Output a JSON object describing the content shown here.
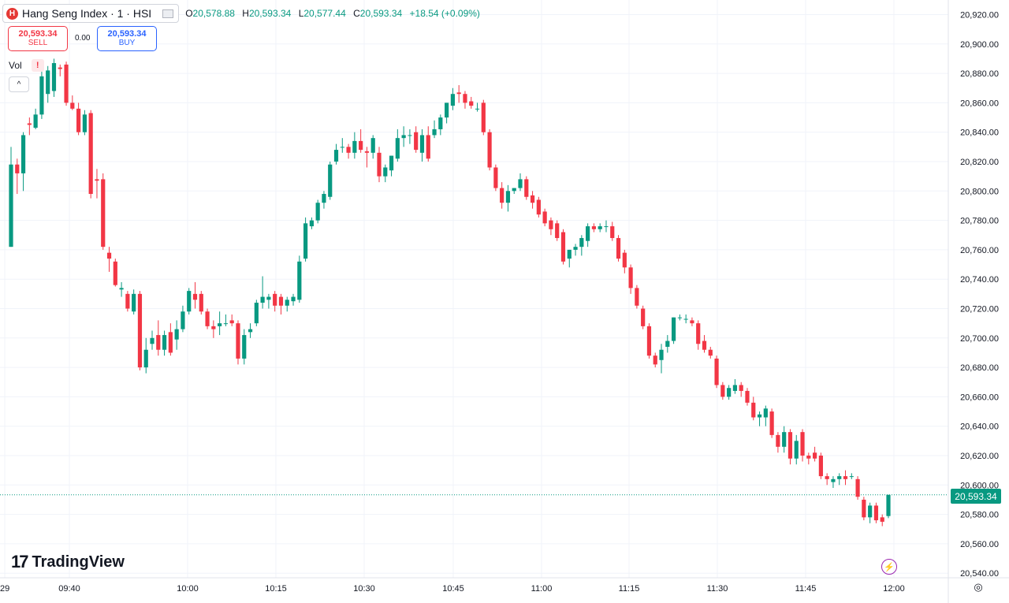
{
  "header": {
    "symbol_logo": "H",
    "symbol_title": "Hang Seng Index · 1 · HSI",
    "ohlc": [
      {
        "k": "O",
        "v": "20,578.88"
      },
      {
        "k": "H",
        "v": "20,593.34"
      },
      {
        "k": "L",
        "v": "20,577.44"
      },
      {
        "k": "C",
        "v": "20,593.34"
      },
      {
        "k": "",
        "v": "+18.54 (+0.09%)"
      }
    ]
  },
  "trade": {
    "sell_price": "20,593.34",
    "sell_label": "SELL",
    "spread": "0.00",
    "buy_price": "20,593.34",
    "buy_label": "BUY"
  },
  "indicator": {
    "vol_label": "Vol",
    "warning": "!"
  },
  "watermark": {
    "text": "TradingView"
  },
  "last_price_label": "20,593.34",
  "colors": {
    "up": "#089981",
    "down": "#f23645",
    "grid": "#f0f3fa",
    "text": "#131722"
  },
  "icons": [
    "hsi-logo-icon",
    "warning-icon",
    "chevron-up-icon",
    "tradingview-logo-icon",
    "lightning-icon",
    "settings-icon"
  ],
  "chart_data": {
    "type": "candlestick",
    "x_tick_labels": [
      "29",
      "09:40",
      "10:00",
      "10:15",
      "10:30",
      "10:45",
      "11:00",
      "11:15",
      "11:30",
      "11:45",
      "12:00"
    ],
    "y_tick_labels": [
      "20,920.00",
      "20,900.00",
      "20,880.00",
      "20,860.00",
      "20,840.00",
      "20,820.00",
      "20,800.00",
      "20,780.00",
      "20,760.00",
      "20,740.00",
      "20,720.00",
      "20,700.00",
      "20,680.00",
      "20,660.00",
      "20,640.00",
      "20,620.00",
      "20,600.00",
      "20,580.00",
      "20,560.00",
      "20,540.00"
    ],
    "ylim": [
      20530,
      20930
    ],
    "last_price": 20593.34,
    "candles": [
      {
        "o": 20762,
        "h": 20830,
        "l": 20762,
        "c": 20818
      },
      {
        "o": 20818,
        "h": 20822,
        "l": 20798,
        "c": 20812
      },
      {
        "o": 20812,
        "h": 20840,
        "l": 20800,
        "c": 20838
      },
      {
        "o": 20846,
        "h": 20850,
        "l": 20838,
        "c": 20845
      },
      {
        "o": 20843,
        "h": 20856,
        "l": 20842,
        "c": 20852
      },
      {
        "o": 20852,
        "h": 20884,
        "l": 20849,
        "c": 20878
      },
      {
        "o": 20866,
        "h": 20885,
        "l": 20860,
        "c": 20882
      },
      {
        "o": 20868,
        "h": 20890,
        "l": 20864,
        "c": 20887
      },
      {
        "o": 20884,
        "h": 20886,
        "l": 20878,
        "c": 20883
      },
      {
        "o": 20886,
        "h": 20888,
        "l": 20858,
        "c": 20860
      },
      {
        "o": 20860,
        "h": 20865,
        "l": 20855,
        "c": 20856
      },
      {
        "o": 20856,
        "h": 20860,
        "l": 20838,
        "c": 20840
      },
      {
        "o": 20840,
        "h": 20855,
        "l": 20838,
        "c": 20852
      },
      {
        "o": 20853,
        "h": 20855,
        "l": 20795,
        "c": 20798
      },
      {
        "o": 20808,
        "h": 20815,
        "l": 20795,
        "c": 20807
      },
      {
        "o": 20808,
        "h": 20812,
        "l": 20760,
        "c": 20762
      },
      {
        "o": 20758,
        "h": 20762,
        "l": 20745,
        "c": 20754
      },
      {
        "o": 20752,
        "h": 20754,
        "l": 20735,
        "c": 20736
      },
      {
        "o": 20733,
        "h": 20738,
        "l": 20728,
        "c": 20734
      },
      {
        "o": 20730,
        "h": 20732,
        "l": 20718,
        "c": 20720
      },
      {
        "o": 20718,
        "h": 20733,
        "l": 20716,
        "c": 20730
      },
      {
        "o": 20730,
        "h": 20732,
        "l": 20678,
        "c": 20680
      },
      {
        "o": 20680,
        "h": 20700,
        "l": 20676,
        "c": 20692
      },
      {
        "o": 20696,
        "h": 20705,
        "l": 20692,
        "c": 20700
      },
      {
        "o": 20702,
        "h": 20712,
        "l": 20688,
        "c": 20692
      },
      {
        "o": 20692,
        "h": 20705,
        "l": 20688,
        "c": 20702
      },
      {
        "o": 20704,
        "h": 20710,
        "l": 20688,
        "c": 20690
      },
      {
        "o": 20699,
        "h": 20712,
        "l": 20692,
        "c": 20706
      },
      {
        "o": 20706,
        "h": 20722,
        "l": 20704,
        "c": 20718
      },
      {
        "o": 20718,
        "h": 20734,
        "l": 20716,
        "c": 20732
      },
      {
        "o": 20730,
        "h": 20738,
        "l": 20720,
        "c": 20726
      },
      {
        "o": 20730,
        "h": 20732,
        "l": 20716,
        "c": 20718
      },
      {
        "o": 20718,
        "h": 20720,
        "l": 20706,
        "c": 20708
      },
      {
        "o": 20708,
        "h": 20712,
        "l": 20700,
        "c": 20706
      },
      {
        "o": 20708,
        "h": 20718,
        "l": 20702,
        "c": 20710
      },
      {
        "o": 20710,
        "h": 20716,
        "l": 20708,
        "c": 20710
      },
      {
        "o": 20712,
        "h": 20716,
        "l": 20708,
        "c": 20710
      },
      {
        "o": 20710,
        "h": 20712,
        "l": 20682,
        "c": 20686
      },
      {
        "o": 20686,
        "h": 20706,
        "l": 20682,
        "c": 20702
      },
      {
        "o": 20704,
        "h": 20710,
        "l": 20700,
        "c": 20706
      },
      {
        "o": 20710,
        "h": 20726,
        "l": 20708,
        "c": 20724
      },
      {
        "o": 20724,
        "h": 20742,
        "l": 20720,
        "c": 20728
      },
      {
        "o": 20726,
        "h": 20730,
        "l": 20720,
        "c": 20728
      },
      {
        "o": 20730,
        "h": 20732,
        "l": 20718,
        "c": 20722
      },
      {
        "o": 20728,
        "h": 20730,
        "l": 20716,
        "c": 20722
      },
      {
        "o": 20722,
        "h": 20728,
        "l": 20718,
        "c": 20726
      },
      {
        "o": 20725,
        "h": 20730,
        "l": 20722,
        "c": 20728
      },
      {
        "o": 20726,
        "h": 20756,
        "l": 20724,
        "c": 20752
      },
      {
        "o": 20754,
        "h": 20782,
        "l": 20752,
        "c": 20778
      },
      {
        "o": 20776,
        "h": 20782,
        "l": 20774,
        "c": 20780
      },
      {
        "o": 20780,
        "h": 20794,
        "l": 20778,
        "c": 20792
      },
      {
        "o": 20792,
        "h": 20800,
        "l": 20788,
        "c": 20798
      },
      {
        "o": 20796,
        "h": 20820,
        "l": 20794,
        "c": 20818
      },
      {
        "o": 20820,
        "h": 20832,
        "l": 20818,
        "c": 20828
      },
      {
        "o": 20830,
        "h": 20836,
        "l": 20826,
        "c": 20830
      },
      {
        "o": 20830,
        "h": 20832,
        "l": 20822,
        "c": 20826
      },
      {
        "o": 20826,
        "h": 20840,
        "l": 20822,
        "c": 20834
      },
      {
        "o": 20834,
        "h": 20842,
        "l": 20826,
        "c": 20828
      },
      {
        "o": 20827,
        "h": 20830,
        "l": 20816,
        "c": 20826
      },
      {
        "o": 20826,
        "h": 20838,
        "l": 20822,
        "c": 20836
      },
      {
        "o": 20826,
        "h": 20830,
        "l": 20806,
        "c": 20810
      },
      {
        "o": 20810,
        "h": 20818,
        "l": 20806,
        "c": 20816
      },
      {
        "o": 20814,
        "h": 20824,
        "l": 20810,
        "c": 20824
      },
      {
        "o": 20822,
        "h": 20842,
        "l": 20820,
        "c": 20836
      },
      {
        "o": 20836,
        "h": 20844,
        "l": 20830,
        "c": 20838
      },
      {
        "o": 20838,
        "h": 20842,
        "l": 20832,
        "c": 20838
      },
      {
        "o": 20840,
        "h": 20844,
        "l": 20826,
        "c": 20828
      },
      {
        "o": 20826,
        "h": 20842,
        "l": 20820,
        "c": 20838
      },
      {
        "o": 20838,
        "h": 20844,
        "l": 20820,
        "c": 20822
      },
      {
        "o": 20838,
        "h": 20848,
        "l": 20836,
        "c": 20842
      },
      {
        "o": 20842,
        "h": 20852,
        "l": 20838,
        "c": 20850
      },
      {
        "o": 20850,
        "h": 20860,
        "l": 20846,
        "c": 20860
      },
      {
        "o": 20858,
        "h": 20870,
        "l": 20855,
        "c": 20866
      },
      {
        "o": 20867,
        "h": 20872,
        "l": 20860,
        "c": 20866
      },
      {
        "o": 20866,
        "h": 20868,
        "l": 20856,
        "c": 20860
      },
      {
        "o": 20861,
        "h": 20864,
        "l": 20856,
        "c": 20858
      },
      {
        "o": 20856,
        "h": 20860,
        "l": 20854,
        "c": 20856
      },
      {
        "o": 20860,
        "h": 20862,
        "l": 20838,
        "c": 20840
      },
      {
        "o": 20840,
        "h": 20842,
        "l": 20814,
        "c": 20816
      },
      {
        "o": 20816,
        "h": 20818,
        "l": 20800,
        "c": 20802
      },
      {
        "o": 20802,
        "h": 20806,
        "l": 20788,
        "c": 20792
      },
      {
        "o": 20792,
        "h": 20804,
        "l": 20786,
        "c": 20800
      },
      {
        "o": 20800,
        "h": 20802,
        "l": 20798,
        "c": 20802
      },
      {
        "o": 20802,
        "h": 20812,
        "l": 20800,
        "c": 20808
      },
      {
        "o": 20808,
        "h": 20810,
        "l": 20794,
        "c": 20796
      },
      {
        "o": 20797,
        "h": 20800,
        "l": 20788,
        "c": 20792
      },
      {
        "o": 20794,
        "h": 20796,
        "l": 20782,
        "c": 20784
      },
      {
        "o": 20786,
        "h": 20788,
        "l": 20776,
        "c": 20778
      },
      {
        "o": 20780,
        "h": 20782,
        "l": 20770,
        "c": 20774
      },
      {
        "o": 20778,
        "h": 20780,
        "l": 20766,
        "c": 20768
      },
      {
        "o": 20772,
        "h": 20774,
        "l": 20750,
        "c": 20752
      },
      {
        "o": 20754,
        "h": 20760,
        "l": 20748,
        "c": 20760
      },
      {
        "o": 20760,
        "h": 20764,
        "l": 20756,
        "c": 20762
      },
      {
        "o": 20762,
        "h": 20770,
        "l": 20756,
        "c": 20768
      },
      {
        "o": 20766,
        "h": 20778,
        "l": 20762,
        "c": 20776
      },
      {
        "o": 20776,
        "h": 20778,
        "l": 20772,
        "c": 20774
      },
      {
        "o": 20774,
        "h": 20778,
        "l": 20772,
        "c": 20776
      },
      {
        "o": 20776,
        "h": 20780,
        "l": 20772,
        "c": 20776
      },
      {
        "o": 20776,
        "h": 20779,
        "l": 20766,
        "c": 20768
      },
      {
        "o": 20768,
        "h": 20770,
        "l": 20752,
        "c": 20754
      },
      {
        "o": 20758,
        "h": 20760,
        "l": 20744,
        "c": 20748
      },
      {
        "o": 20748,
        "h": 20750,
        "l": 20730,
        "c": 20734
      },
      {
        "o": 20734,
        "h": 20736,
        "l": 20720,
        "c": 20722
      },
      {
        "o": 20720,
        "h": 20722,
        "l": 20706,
        "c": 20708
      },
      {
        "o": 20708,
        "h": 20710,
        "l": 20686,
        "c": 20688
      },
      {
        "o": 20688,
        "h": 20690,
        "l": 20680,
        "c": 20682
      },
      {
        "o": 20685,
        "h": 20696,
        "l": 20676,
        "c": 20692
      },
      {
        "o": 20694,
        "h": 20702,
        "l": 20690,
        "c": 20698
      },
      {
        "o": 20698,
        "h": 20714,
        "l": 20696,
        "c": 20714
      },
      {
        "o": 20714,
        "h": 20716,
        "l": 20712,
        "c": 20714
      },
      {
        "o": 20713,
        "h": 20716,
        "l": 20710,
        "c": 20713
      },
      {
        "o": 20712,
        "h": 20714,
        "l": 20708,
        "c": 20710
      },
      {
        "o": 20710,
        "h": 20712,
        "l": 20692,
        "c": 20696
      },
      {
        "o": 20698,
        "h": 20702,
        "l": 20690,
        "c": 20692
      },
      {
        "o": 20692,
        "h": 20694,
        "l": 20686,
        "c": 20688
      },
      {
        "o": 20686,
        "h": 20688,
        "l": 20666,
        "c": 20668
      },
      {
        "o": 20668,
        "h": 20670,
        "l": 20658,
        "c": 20660
      },
      {
        "o": 20660,
        "h": 20668,
        "l": 20658,
        "c": 20666
      },
      {
        "o": 20664,
        "h": 20672,
        "l": 20662,
        "c": 20668
      },
      {
        "o": 20668,
        "h": 20670,
        "l": 20660,
        "c": 20664
      },
      {
        "o": 20664,
        "h": 20666,
        "l": 20654,
        "c": 20656
      },
      {
        "o": 20656,
        "h": 20660,
        "l": 20644,
        "c": 20646
      },
      {
        "o": 20646,
        "h": 20650,
        "l": 20640,
        "c": 20648
      },
      {
        "o": 20646,
        "h": 20654,
        "l": 20640,
        "c": 20652
      },
      {
        "o": 20650,
        "h": 20652,
        "l": 20632,
        "c": 20634
      },
      {
        "o": 20634,
        "h": 20636,
        "l": 20622,
        "c": 20626
      },
      {
        "o": 20626,
        "h": 20640,
        "l": 20622,
        "c": 20636
      },
      {
        "o": 20636,
        "h": 20638,
        "l": 20614,
        "c": 20618
      },
      {
        "o": 20618,
        "h": 20634,
        "l": 20614,
        "c": 20630
      },
      {
        "o": 20636,
        "h": 20638,
        "l": 20616,
        "c": 20620
      },
      {
        "o": 20620,
        "h": 20622,
        "l": 20614,
        "c": 20618
      },
      {
        "o": 20622,
        "h": 20626,
        "l": 20616,
        "c": 20618
      },
      {
        "o": 20620,
        "h": 20622,
        "l": 20604,
        "c": 20606
      },
      {
        "o": 20606,
        "h": 20608,
        "l": 20600,
        "c": 20604
      },
      {
        "o": 20602,
        "h": 20606,
        "l": 20598,
        "c": 20604
      },
      {
        "o": 20604,
        "h": 20608,
        "l": 20600,
        "c": 20606
      },
      {
        "o": 20606,
        "h": 20610,
        "l": 20600,
        "c": 20604
      },
      {
        "o": 20606,
        "h": 20608,
        "l": 20604,
        "c": 20606
      },
      {
        "o": 20604,
        "h": 20606,
        "l": 20590,
        "c": 20592
      },
      {
        "o": 20590,
        "h": 20592,
        "l": 20576,
        "c": 20578
      },
      {
        "o": 20578,
        "h": 20588,
        "l": 20574,
        "c": 20586
      },
      {
        "o": 20586,
        "h": 20588,
        "l": 20574,
        "c": 20576
      },
      {
        "o": 20578,
        "h": 20580,
        "l": 20572,
        "c": 20575
      },
      {
        "o": 20578.88,
        "h": 20593.34,
        "l": 20577.44,
        "c": 20593.34
      }
    ]
  }
}
